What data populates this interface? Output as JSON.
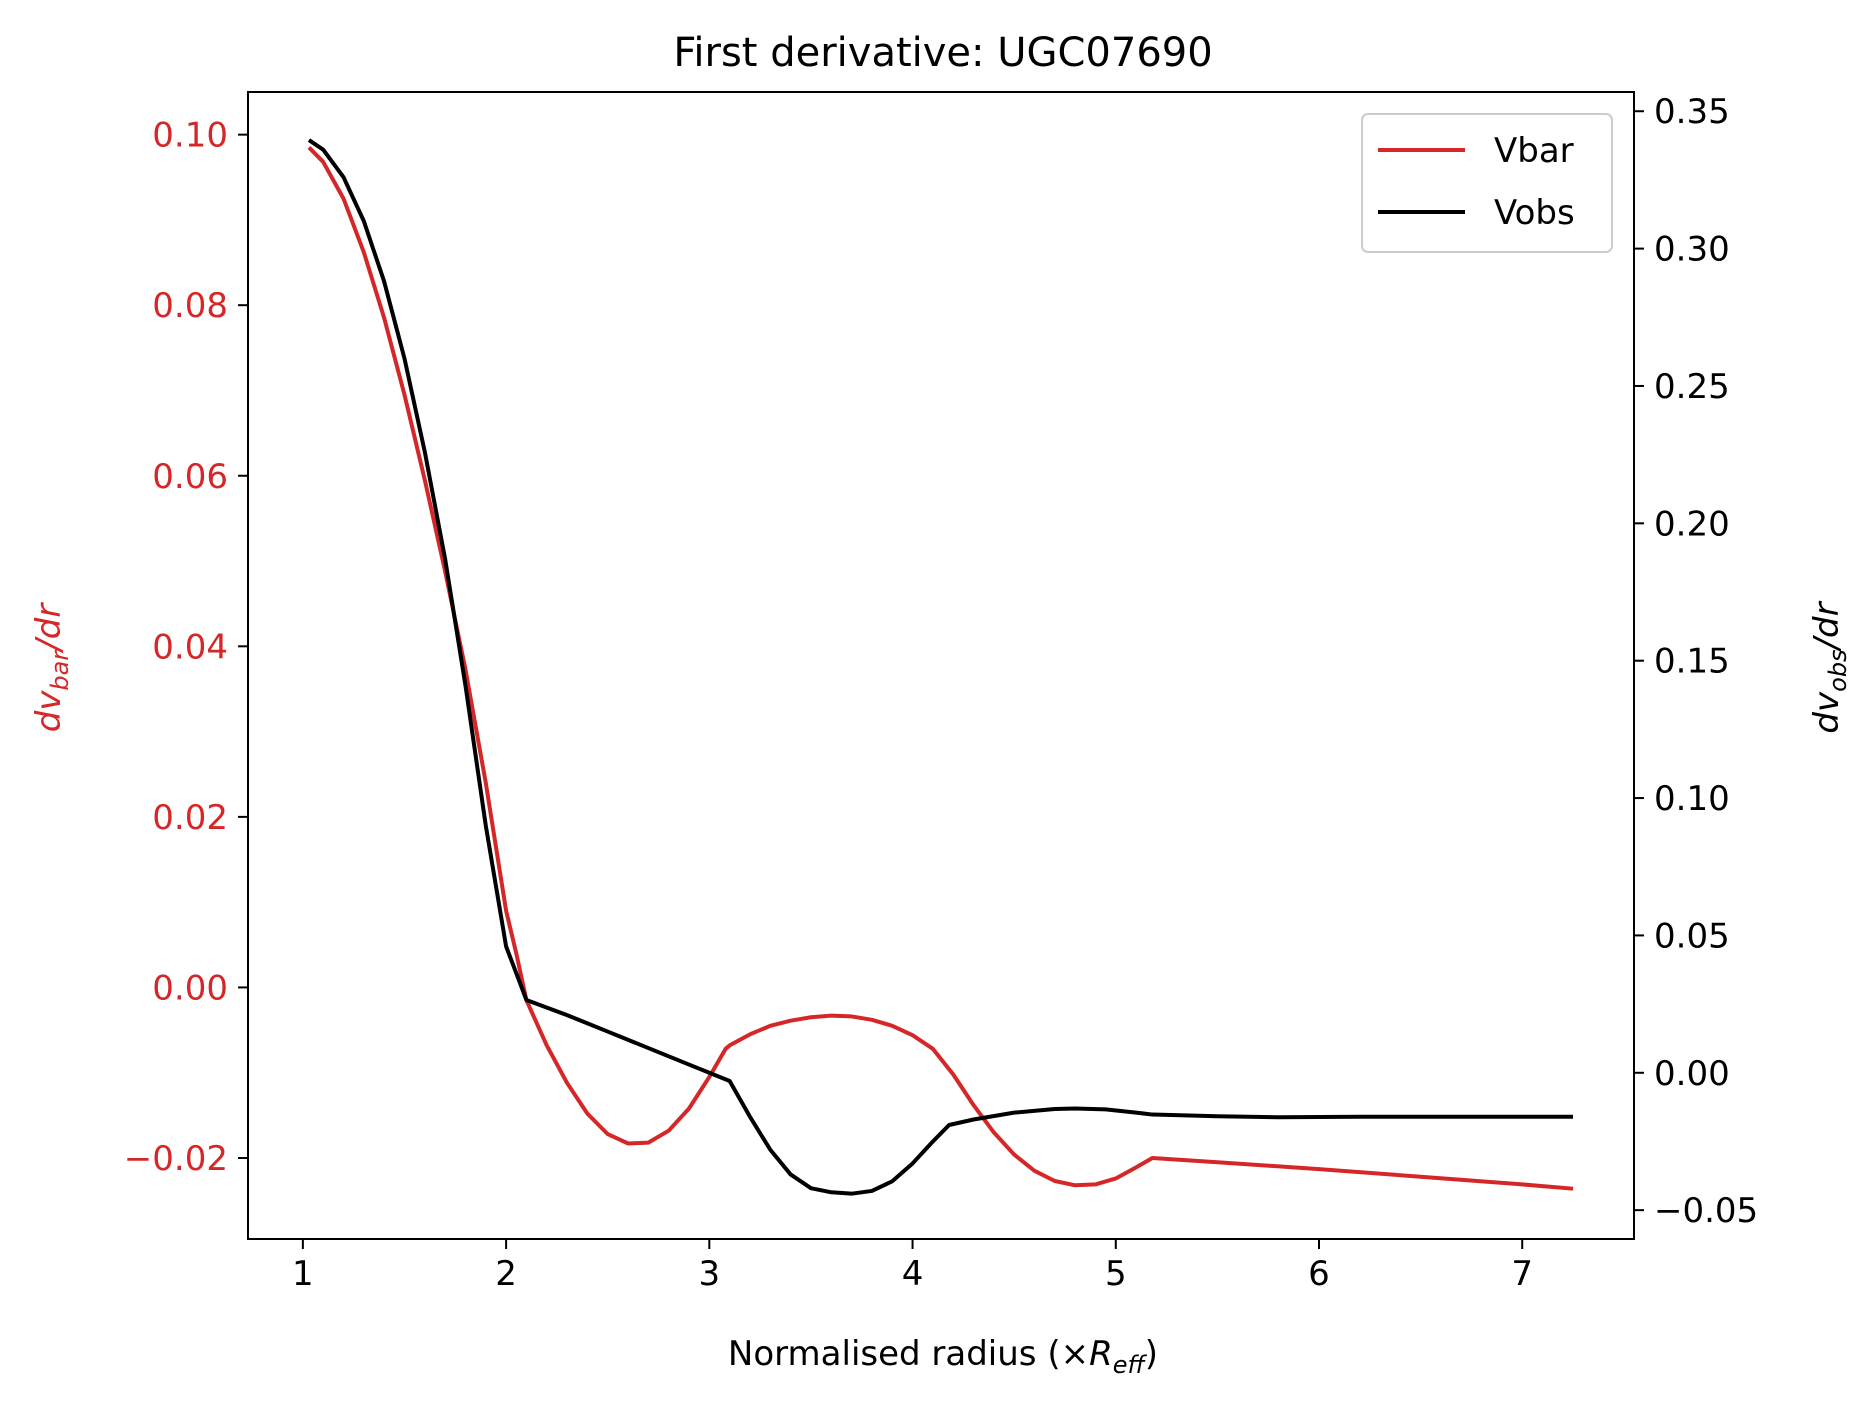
{
  "chart_data": {
    "type": "line",
    "title": "First derivative: UGC07690",
    "xlabel": {
      "main": "Normalised radius (×",
      "var": "R",
      "sub": "eff",
      "close": ")"
    },
    "ylabel_left": {
      "pre": "dv",
      "sub": "bar",
      "post": "/dr"
    },
    "ylabel_right": {
      "pre": "dv",
      "sub": "obs",
      "post": "/dr"
    },
    "xlim": [
      0.73,
      7.55
    ],
    "ylim_left": [
      -0.0295,
      0.105
    ],
    "ylim_right": [
      -0.0605,
      0.357
    ],
    "x_ticks": [
      {
        "value": 1,
        "label": "1"
      },
      {
        "value": 2,
        "label": "2"
      },
      {
        "value": 3,
        "label": "3"
      },
      {
        "value": 4,
        "label": "4"
      },
      {
        "value": 5,
        "label": "5"
      },
      {
        "value": 6,
        "label": "6"
      },
      {
        "value": 7,
        "label": "7"
      }
    ],
    "y_left_ticks": [
      {
        "value": 0.1,
        "label": "0.10"
      },
      {
        "value": 0.08,
        "label": "0.08"
      },
      {
        "value": 0.06,
        "label": "0.06"
      },
      {
        "value": 0.04,
        "label": "0.04"
      },
      {
        "value": 0.02,
        "label": "0.02"
      },
      {
        "value": 0.0,
        "label": "0.00"
      },
      {
        "value": -0.02,
        "label": "−0.02"
      }
    ],
    "y_right_ticks": [
      {
        "value": 0.35,
        "label": "0.35"
      },
      {
        "value": 0.3,
        "label": "0.30"
      },
      {
        "value": 0.25,
        "label": "0.25"
      },
      {
        "value": 0.2,
        "label": "0.20"
      },
      {
        "value": 0.15,
        "label": "0.15"
      },
      {
        "value": 0.1,
        "label": "0.10"
      },
      {
        "value": 0.05,
        "label": "0.05"
      },
      {
        "value": 0.0,
        "label": "0.00"
      },
      {
        "value": -0.05,
        "label": "−0.05"
      }
    ],
    "legend": {
      "position": "top-right"
    },
    "series": [
      {
        "name": "Vbar",
        "axis": "left",
        "color": "#d62728",
        "points": [
          [
            1.03,
            0.0985
          ],
          [
            1.1,
            0.0968
          ],
          [
            1.2,
            0.0925
          ],
          [
            1.3,
            0.0862
          ],
          [
            1.4,
            0.0785
          ],
          [
            1.5,
            0.0695
          ],
          [
            1.6,
            0.0595
          ],
          [
            1.7,
            0.0488
          ],
          [
            1.8,
            0.0373
          ],
          [
            1.9,
            0.024
          ],
          [
            2.0,
            0.009
          ],
          [
            2.05,
            0.004
          ],
          [
            2.1,
            -0.0015
          ],
          [
            2.2,
            -0.0068
          ],
          [
            2.3,
            -0.0112
          ],
          [
            2.4,
            -0.0148
          ],
          [
            2.5,
            -0.0172
          ],
          [
            2.6,
            -0.0183
          ],
          [
            2.7,
            -0.0182
          ],
          [
            2.8,
            -0.0168
          ],
          [
            2.9,
            -0.0142
          ],
          [
            3.0,
            -0.0105
          ],
          [
            3.08,
            -0.0072
          ],
          [
            3.1,
            -0.0068
          ],
          [
            3.2,
            -0.0055
          ],
          [
            3.3,
            -0.0045
          ],
          [
            3.4,
            -0.0039
          ],
          [
            3.5,
            -0.0035
          ],
          [
            3.6,
            -0.0033
          ],
          [
            3.7,
            -0.0034
          ],
          [
            3.8,
            -0.0038
          ],
          [
            3.9,
            -0.0045
          ],
          [
            4.0,
            -0.0056
          ],
          [
            4.1,
            -0.0072
          ],
          [
            4.2,
            -0.0102
          ],
          [
            4.3,
            -0.0138
          ],
          [
            4.4,
            -0.017
          ],
          [
            4.5,
            -0.0196
          ],
          [
            4.6,
            -0.0215
          ],
          [
            4.7,
            -0.0227
          ],
          [
            4.8,
            -0.0232
          ],
          [
            4.9,
            -0.0231
          ],
          [
            5.0,
            -0.0224
          ],
          [
            5.1,
            -0.0211
          ],
          [
            5.18,
            -0.02
          ],
          [
            5.5,
            -0.0205
          ],
          [
            6.0,
            -0.0213
          ],
          [
            6.5,
            -0.0222
          ],
          [
            7.0,
            -0.0231
          ],
          [
            7.25,
            -0.0236
          ]
        ]
      },
      {
        "name": "Vobs",
        "axis": "right",
        "color": "#000000",
        "points": [
          [
            1.03,
            0.3395
          ],
          [
            1.1,
            0.336
          ],
          [
            1.2,
            0.326
          ],
          [
            1.3,
            0.31
          ],
          [
            1.4,
            0.288
          ],
          [
            1.5,
            0.26
          ],
          [
            1.6,
            0.226
          ],
          [
            1.7,
            0.187
          ],
          [
            1.8,
            0.141
          ],
          [
            1.9,
            0.09
          ],
          [
            2.0,
            0.046
          ],
          [
            2.1,
            0.0265
          ],
          [
            2.3,
            0.021
          ],
          [
            2.5,
            0.015
          ],
          [
            2.7,
            0.009
          ],
          [
            2.9,
            0.003
          ],
          [
            3.1,
            -0.003
          ],
          [
            3.2,
            -0.016
          ],
          [
            3.3,
            -0.028
          ],
          [
            3.4,
            -0.037
          ],
          [
            3.5,
            -0.042
          ],
          [
            3.6,
            -0.0435
          ],
          [
            3.7,
            -0.044
          ],
          [
            3.8,
            -0.043
          ],
          [
            3.9,
            -0.0395
          ],
          [
            4.0,
            -0.033
          ],
          [
            4.1,
            -0.025
          ],
          [
            4.18,
            -0.019
          ],
          [
            4.3,
            -0.017
          ],
          [
            4.5,
            -0.0145
          ],
          [
            4.7,
            -0.0132
          ],
          [
            4.8,
            -0.013
          ],
          [
            4.95,
            -0.0133
          ],
          [
            5.1,
            -0.0145
          ],
          [
            5.18,
            -0.0152
          ],
          [
            5.5,
            -0.0158
          ],
          [
            5.8,
            -0.0162
          ],
          [
            6.2,
            -0.016
          ],
          [
            6.7,
            -0.016
          ],
          [
            7.25,
            -0.016
          ]
        ]
      }
    ]
  }
}
